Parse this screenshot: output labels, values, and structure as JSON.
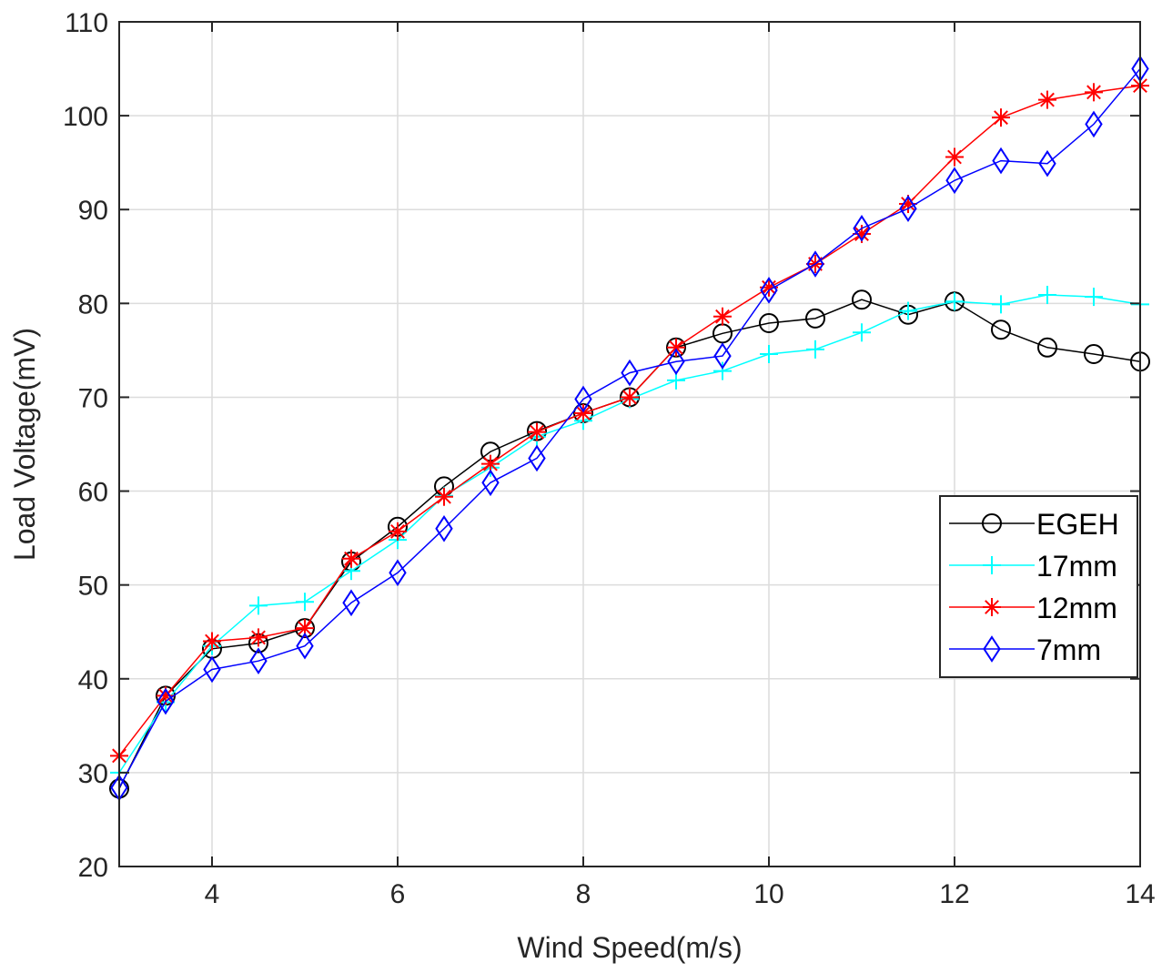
{
  "chart_data": {
    "type": "line",
    "title": "",
    "xlabel": "Wind Speed(m/s)",
    "ylabel": "Load Voltage(mV)",
    "xlim": [
      3,
      14
    ],
    "ylim": [
      20,
      110
    ],
    "xticks": [
      4,
      6,
      8,
      10,
      12,
      14
    ],
    "yticks": [
      20,
      30,
      40,
      50,
      60,
      70,
      80,
      90,
      100,
      110
    ],
    "grid": true,
    "legend_position": "right",
    "x": [
      3,
      3.5,
      4,
      4.5,
      5,
      5.5,
      6,
      6.5,
      7,
      7.5,
      8,
      8.5,
      9,
      9.5,
      10,
      10.5,
      11,
      11.5,
      12,
      12.5,
      13,
      13.5,
      14
    ],
    "series": [
      {
        "name": "EGEH",
        "color": "#000000",
        "marker": "circle",
        "values": [
          28.3,
          38.2,
          43.2,
          43.8,
          45.4,
          52.5,
          56.2,
          60.5,
          64.2,
          66.4,
          68.3,
          70.0,
          75.3,
          76.8,
          77.9,
          78.4,
          80.4,
          78.8,
          80.2,
          77.2,
          75.3,
          74.6,
          73.8
        ]
      },
      {
        "name": "17mm",
        "color": "#00ffff",
        "marker": "plus",
        "values": [
          30.0,
          37.5,
          43.5,
          47.8,
          48.2,
          51.5,
          54.8,
          59.5,
          62.5,
          65.8,
          67.5,
          69.8,
          71.8,
          72.8,
          74.6,
          75.1,
          76.9,
          79.2,
          80.2,
          79.9,
          80.9,
          80.7,
          79.9
        ]
      },
      {
        "name": "12mm",
        "color": "#ff0000",
        "marker": "asterisk",
        "values": [
          31.8,
          38.2,
          44.0,
          44.4,
          45.4,
          52.8,
          55.7,
          59.4,
          62.9,
          66.3,
          68.3,
          70.0,
          75.3,
          78.6,
          81.7,
          84.2,
          87.4,
          90.6,
          95.6,
          99.8,
          101.7,
          102.5,
          103.2
        ]
      },
      {
        "name": "7mm",
        "color": "#0000ff",
        "marker": "diamond",
        "values": [
          28.4,
          37.6,
          41.0,
          41.9,
          43.5,
          48.1,
          51.3,
          56.0,
          60.9,
          63.5,
          69.8,
          72.6,
          73.8,
          74.4,
          81.4,
          84.2,
          88.0,
          90.1,
          93.1,
          95.2,
          94.9,
          99.1,
          105.0
        ]
      }
    ]
  }
}
